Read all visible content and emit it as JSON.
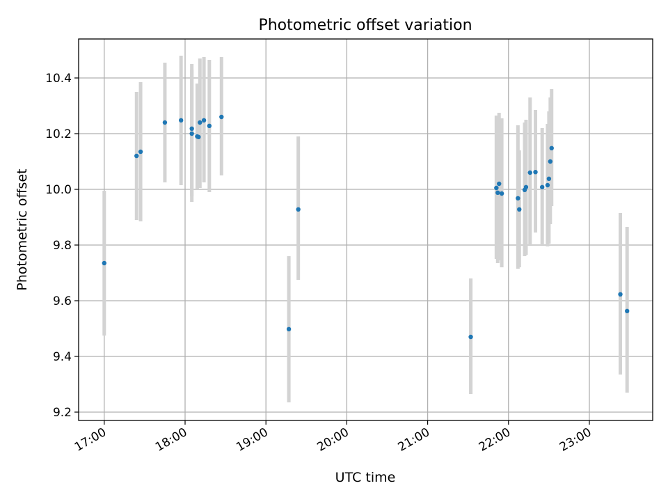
{
  "chart_data": {
    "type": "scatter",
    "title": "Photometric offset variation",
    "xlabel": "UTC time",
    "ylabel": "Photometric offset",
    "x_ticks": [
      "17:00",
      "18:00",
      "19:00",
      "20:00",
      "21:00",
      "22:00",
      "23:00"
    ],
    "y_ticks": [
      "9.2",
      "9.4",
      "9.6",
      "9.8",
      "10.0",
      "10.2",
      "10.4"
    ],
    "xlim": [
      "16:41",
      "23:47"
    ],
    "ylim": [
      9.17,
      10.54
    ],
    "grid": true,
    "point_color": "#1f77b4",
    "errorbar_color": "#d3d3d3",
    "points": [
      {
        "x": "17:00",
        "y": 9.735,
        "err_low": 9.475,
        "err_high": 9.995
      },
      {
        "x": "17:24",
        "y": 10.12,
        "err_low": 9.89,
        "err_high": 10.35
      },
      {
        "x": "17:27",
        "y": 10.135,
        "err_low": 9.885,
        "err_high": 10.385
      },
      {
        "x": "17:45",
        "y": 10.24,
        "err_low": 10.025,
        "err_high": 10.455
      },
      {
        "x": "17:57",
        "y": 10.248,
        "err_low": 10.015,
        "err_high": 10.48
      },
      {
        "x": "18:05",
        "y": 10.2,
        "err_low": 9.975,
        "err_high": 10.43
      },
      {
        "x": "18:05",
        "y": 10.218,
        "err_low": 9.955,
        "err_high": 10.45
      },
      {
        "x": "18:09",
        "y": 10.19,
        "err_low": 10.0,
        "err_high": 10.38
      },
      {
        "x": "18:10",
        "y": 10.188,
        "err_low": 10.01,
        "err_high": 10.37
      },
      {
        "x": "18:11",
        "y": 10.24,
        "err_low": 10.005,
        "err_high": 10.47
      },
      {
        "x": "18:14",
        "y": 10.248,
        "err_low": 10.025,
        "err_high": 10.475
      },
      {
        "x": "18:18",
        "y": 10.228,
        "err_low": 9.99,
        "err_high": 10.465
      },
      {
        "x": "18:27",
        "y": 10.26,
        "err_low": 10.05,
        "err_high": 10.475
      },
      {
        "x": "19:17",
        "y": 9.498,
        "err_low": 9.235,
        "err_high": 9.76
      },
      {
        "x": "19:24",
        "y": 9.928,
        "err_low": 9.675,
        "err_high": 10.19
      },
      {
        "x": "21:32",
        "y": 9.47,
        "err_low": 9.265,
        "err_high": 9.68
      },
      {
        "x": "21:51",
        "y": 10.005,
        "err_low": 9.75,
        "err_high": 10.265
      },
      {
        "x": "21:52",
        "y": 9.988,
        "err_low": 9.735,
        "err_high": 10.245
      },
      {
        "x": "21:53",
        "y": 10.02,
        "err_low": 9.745,
        "err_high": 10.275
      },
      {
        "x": "21:55",
        "y": 9.985,
        "err_low": 9.72,
        "err_high": 10.255
      },
      {
        "x": "22:07",
        "y": 9.968,
        "err_low": 9.715,
        "err_high": 10.23
      },
      {
        "x": "22:08",
        "y": 9.928,
        "err_low": 9.72,
        "err_high": 10.14
      },
      {
        "x": "22:12",
        "y": 9.998,
        "err_low": 9.76,
        "err_high": 10.24
      },
      {
        "x": "22:13",
        "y": 10.008,
        "err_low": 9.765,
        "err_high": 10.25
      },
      {
        "x": "22:16",
        "y": 10.06,
        "err_low": 9.8,
        "err_high": 10.33
      },
      {
        "x": "22:20",
        "y": 10.062,
        "err_low": 9.845,
        "err_high": 10.285
      },
      {
        "x": "22:25",
        "y": 10.008,
        "err_low": 9.8,
        "err_high": 10.22
      },
      {
        "x": "22:29",
        "y": 10.015,
        "err_low": 9.795,
        "err_high": 10.235
      },
      {
        "x": "22:30",
        "y": 10.038,
        "err_low": 9.805,
        "err_high": 10.28
      },
      {
        "x": "22:31",
        "y": 10.1,
        "err_low": 9.875,
        "err_high": 10.33
      },
      {
        "x": "22:32",
        "y": 10.148,
        "err_low": 9.94,
        "err_high": 10.36
      },
      {
        "x": "23:23",
        "y": 9.623,
        "err_low": 9.335,
        "err_high": 9.915
      },
      {
        "x": "23:28",
        "y": 9.563,
        "err_low": 9.27,
        "err_high": 9.865
      }
    ]
  }
}
